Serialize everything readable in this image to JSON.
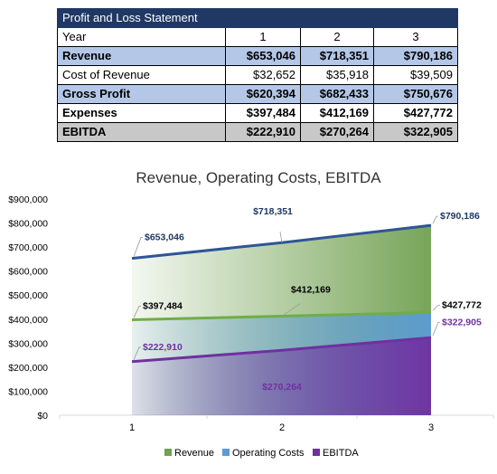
{
  "table": {
    "title": "Profit and Loss Statement",
    "header": {
      "label": "Year",
      "years": [
        "1",
        "2",
        "3"
      ]
    },
    "rows": [
      {
        "label": "Revenue",
        "values": [
          "$653,046",
          "$718,351",
          "$790,186"
        ]
      },
      {
        "label": "Cost of Revenue",
        "values": [
          "$32,652",
          "$35,918",
          "$39,509"
        ]
      },
      {
        "label": "Gross Profit",
        "values": [
          "$620,394",
          "$682,433",
          "$750,676"
        ]
      },
      {
        "label": "Expenses",
        "values": [
          "$397,484",
          "$412,169",
          "$427,772"
        ]
      },
      {
        "label": "EBITDA",
        "values": [
          "$222,910",
          "$270,264",
          "$322,905"
        ]
      }
    ]
  },
  "chart_data": {
    "type": "area",
    "title": "Revenue, Operating Costs, EBITDA",
    "categories": [
      "1",
      "2",
      "3"
    ],
    "ylim": [
      0,
      900000
    ],
    "y_ticks": [
      "$0",
      "$100,000",
      "$200,000",
      "$300,000",
      "$400,000",
      "$500,000",
      "$600,000",
      "$700,000",
      "$800,000",
      "$900,000"
    ],
    "grid": false,
    "legend": "bottom",
    "series": [
      {
        "name": "Revenue",
        "values": [
          653046,
          718351,
          790186
        ],
        "labels": [
          "$653,046",
          "$718,351",
          "$790,186"
        ],
        "color": "#2f5597",
        "fill_color": "#70a050",
        "label_color": "#1f3864"
      },
      {
        "name": "Operating Costs",
        "values": [
          397484,
          412169,
          427772
        ],
        "labels": [
          "$397,484",
          "$412,169",
          "$427,772"
        ],
        "color": "#70ad47",
        "fill_color": "#5b9bd5",
        "label_color": "#000000"
      },
      {
        "name": "EBITDA",
        "values": [
          222910,
          270264,
          322905
        ],
        "labels": [
          "$222,910",
          "$270,264",
          "$322,905"
        ],
        "color": "#7030a0",
        "fill_color": "#7030a0",
        "label_color": "#7030a0"
      }
    ]
  }
}
